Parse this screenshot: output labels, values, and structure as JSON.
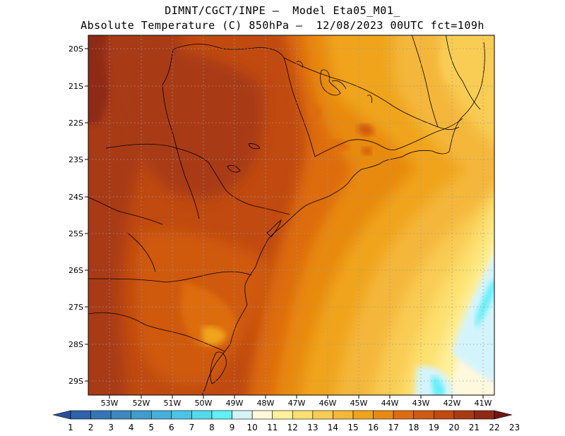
{
  "header": {
    "line1": "DIMNT/CGCT/INPE –  Model Eta05_M01_",
    "line2": "Absolute Temperature (C) 850hPa –  12/08/2023 00UTC fct=109h"
  },
  "map": {
    "variable": "Absolute Temperature",
    "units": "C",
    "level": "850hPa",
    "lon_range": [
      -53.8,
      -40.6
    ],
    "lat_range": [
      -29.5,
      -19.9
    ],
    "lon_labels": [
      "53W",
      "52W",
      "51W",
      "50W",
      "49W",
      "48W",
      "47W",
      "46W",
      "45W",
      "44W",
      "43W",
      "42W",
      "41W"
    ],
    "lat_labels": [
      "20S",
      "21S",
      "22S",
      "23S",
      "24S",
      "25S",
      "26S",
      "27S",
      "28S",
      "29S"
    ]
  },
  "colorbar": {
    "labels": [
      "1",
      "2",
      "3",
      "4",
      "5",
      "6",
      "7",
      "8",
      "9",
      "10",
      "11",
      "12",
      "13",
      "14",
      "15",
      "16",
      "17",
      "18",
      "19",
      "20",
      "21",
      "22",
      "23"
    ],
    "colors": [
      "#2a4f9a",
      "#2f62a8",
      "#3575b6",
      "#3b88c2",
      "#3f9ccd",
      "#44b0d8",
      "#4ac6e4",
      "#52dbee",
      "#5ff0f8",
      "#d4f4fc",
      "#fff8dc",
      "#fff09a",
      "#fde06e",
      "#f9cc52",
      "#f4b73a",
      "#f0a41c",
      "#e88a10",
      "#dd6c0e",
      "#cf5a10",
      "#c04a10",
      "#a83a12",
      "#8e2a14",
      "#6f1616"
    ]
  }
}
